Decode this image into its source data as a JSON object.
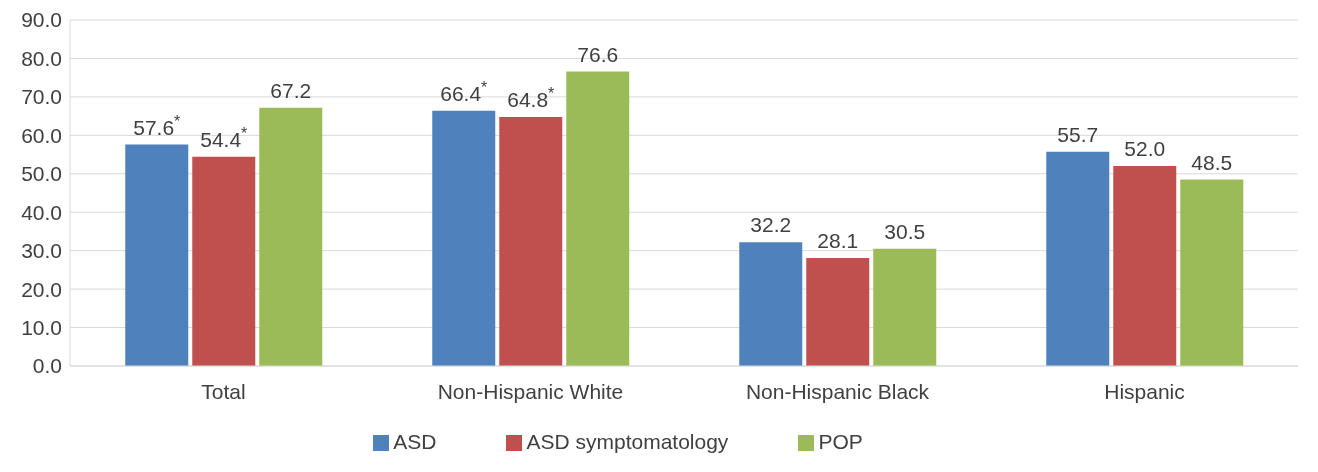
{
  "chart_data": {
    "type": "bar",
    "categories": [
      "Total",
      "Non-Hispanic White",
      "Non-Hispanic Black",
      "Hispanic"
    ],
    "series": [
      {
        "name": "ASD",
        "color": "#4f81bd",
        "values": [
          57.6,
          66.4,
          32.2,
          55.7
        ],
        "value_labels": [
          "57.6$^{*}$",
          "66.4$^{*}$",
          "32.2",
          "55.7"
        ]
      },
      {
        "name": "ASD symptomatology",
        "color": "#c0504d",
        "values": [
          54.4,
          64.8,
          28.1,
          52.0
        ],
        "value_labels": [
          "54.4$^{*}$",
          "64.8$^{*}$",
          "28.1",
          "52.0"
        ]
      },
      {
        "name": "POP",
        "color": "#9bbb59",
        "values": [
          67.2,
          76.6,
          30.5,
          48.5
        ],
        "value_labels": [
          "67.2",
          "76.6",
          "30.5",
          "48.5"
        ]
      }
    ],
    "ylim": [
      0,
      90
    ],
    "yticks": [
      {
        "value": 0,
        "label": "0.0"
      },
      {
        "value": 10,
        "label": "10.0"
      },
      {
        "value": 20,
        "label": "20.0"
      },
      {
        "value": 30,
        "label": "30.0"
      },
      {
        "value": 40,
        "label": "40.0"
      },
      {
        "value": 50,
        "label": "50.0"
      },
      {
        "value": 60,
        "label": "60.0"
      },
      {
        "value": 70,
        "label": "70.0"
      },
      {
        "value": 80,
        "label": "80.0"
      },
      {
        "value": 90,
        "label": "90.0"
      }
    ],
    "grid": "y",
    "legend": "bottom"
  }
}
